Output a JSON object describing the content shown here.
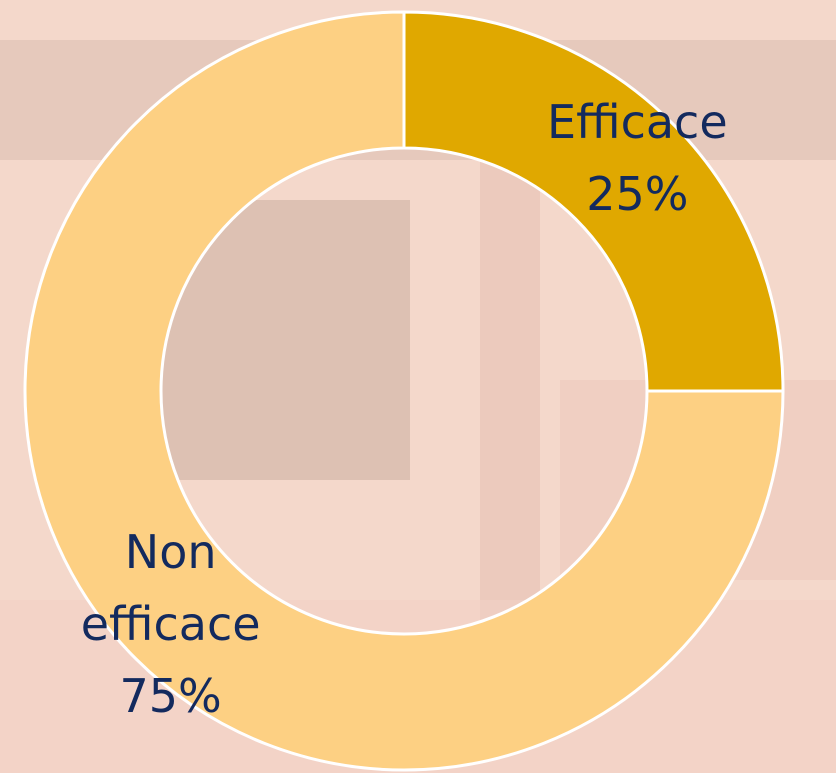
{
  "chart_data": {
    "type": "pie",
    "donut": true,
    "categories": [
      "Efficace",
      "Non efficace"
    ],
    "values": [
      25,
      75
    ],
    "value_labels": [
      "25%",
      "75%"
    ],
    "colors": [
      "#e0a800",
      "#fdd083"
    ]
  }
}
